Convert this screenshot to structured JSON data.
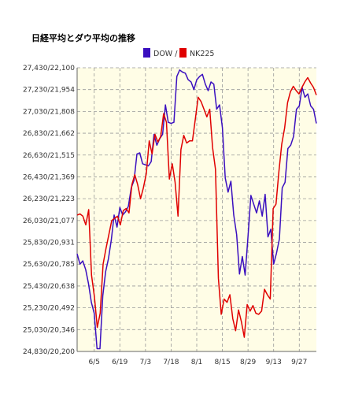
{
  "chart_data": {
    "type": "line",
    "title": "日経平均とダウ平均の推移",
    "legend": {
      "placement": "top",
      "entries": [
        {
          "label": "DOW /",
          "color": "#3a0fbf"
        },
        {
          "label": "NK225",
          "color": "#e00000"
        }
      ]
    },
    "y_tick_labels": [
      "27,430/22,100",
      "27,230/21,954",
      "27,030/21,808",
      "26,830/21,662",
      "26,630/21,515",
      "26,430/21,369",
      "26,230/21,223",
      "26,030/21,077",
      "25,830/20,931",
      "25,630/20,785",
      "25,430/20,638",
      "25,230/20,492",
      "25,030/20,346",
      "24,830/20,200"
    ],
    "x_tick_labels": [
      "6/5",
      "6/19",
      "7/3",
      "7/18",
      "8/1",
      "8/15",
      "8/29",
      "9/13",
      "9/27"
    ],
    "x_tick_index": [
      6,
      15,
      24,
      33,
      42,
      51,
      60,
      69,
      78
    ],
    "ylim": [
      24830,
      27430
    ],
    "grid": true,
    "plot_background": "#fffde6",
    "series": [
      {
        "name": "DOW /",
        "color": "#3a0fbf",
        "values": [
          25725,
          25630,
          25660,
          25580,
          25450,
          25280,
          25180,
          24855,
          24855,
          25340,
          25560,
          25680,
          25850,
          26080,
          25970,
          26150,
          26080,
          26110,
          26160,
          26330,
          26400,
          26640,
          26650,
          26550,
          26540,
          26530,
          26570,
          26820,
          26720,
          26780,
          26820,
          27090,
          26930,
          26920,
          26930,
          27350,
          27410,
          27390,
          27380,
          27320,
          27300,
          27230,
          27320,
          27350,
          27370,
          27280,
          27220,
          27300,
          27280,
          27050,
          27090,
          26880,
          26420,
          26290,
          26390,
          26080,
          25900,
          25540,
          25700,
          25530,
          25880,
          26260,
          26180,
          26100,
          26210,
          26070,
          26270,
          25880,
          25950,
          25630,
          25730,
          25860,
          26330,
          26380,
          26690,
          26720,
          26800,
          27050,
          27080,
          27250,
          27160,
          27190,
          27080,
          27050,
          26920
        ]
      },
      {
        "name": "NK225",
        "color": "#e00000",
        "values": [
          26080,
          26090,
          26070,
          25990,
          26130,
          25530,
          25330,
          25050,
          25180,
          25630,
          25770,
          25900,
          26030,
          26050,
          26070,
          25990,
          26120,
          26140,
          26100,
          26360,
          26450,
          26360,
          26230,
          26330,
          26460,
          26760,
          26640,
          26820,
          26750,
          26800,
          27010,
          26930,
          26410,
          26550,
          26380,
          26070,
          26680,
          26810,
          26740,
          26760,
          26760,
          26960,
          27160,
          27120,
          27050,
          26980,
          27050,
          26700,
          26500,
          25500,
          25170,
          25310,
          25280,
          25350,
          25130,
          25020,
          25210,
          25100,
          24960,
          25260,
          25200,
          25250,
          25180,
          25170,
          25200,
          25400,
          25350,
          25310,
          26140,
          26180,
          26480,
          26730,
          26880,
          27110,
          27210,
          27260,
          27220,
          27190,
          27250,
          27300,
          27340,
          27290,
          27250,
          27180
        ]
      }
    ]
  }
}
